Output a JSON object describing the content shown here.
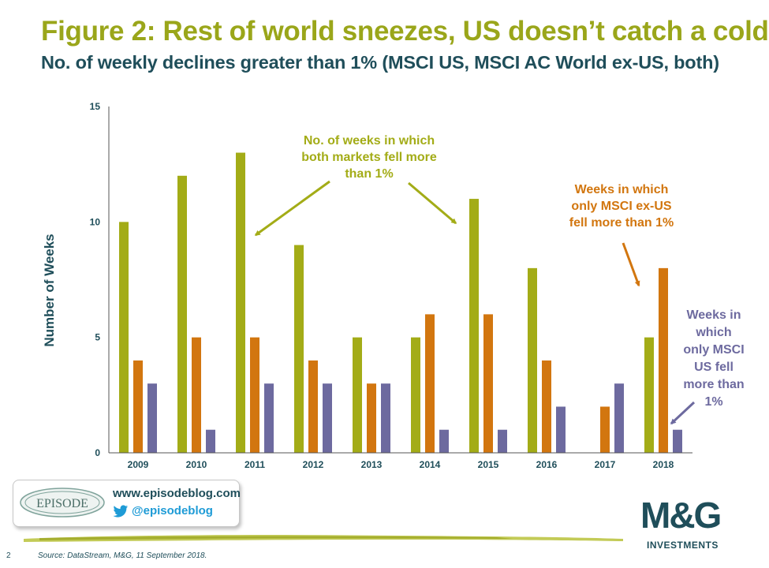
{
  "header": {
    "title": "Figure 2: Rest of world sneezes, US doesn’t catch a cold",
    "subtitle": "No. of weekly declines greater than 1% (MSCI US, MSCI AC World ex-US, both)"
  },
  "chart_data": {
    "type": "bar",
    "categories": [
      "2009",
      "2010",
      "2011",
      "2012",
      "2013",
      "2014",
      "2015",
      "2016",
      "2017",
      "2018"
    ],
    "series": [
      {
        "values": [
          10,
          12,
          13,
          9,
          5,
          5,
          11,
          8,
          0,
          5
        ],
        "color": "#a3ac17"
      },
      {
        "values": [
          4,
          5,
          5,
          4,
          3,
          6,
          6,
          4,
          2,
          8
        ],
        "color": "#d2760f"
      },
      {
        "values": [
          3,
          1,
          3,
          3,
          3,
          1,
          1,
          2,
          3,
          1
        ],
        "color": "#6d6a9f"
      }
    ],
    "ylabel": "Number of Weeks",
    "xlabel": "",
    "ylim": [
      0,
      15
    ],
    "yticks": [
      "0",
      "5",
      "10",
      "15"
    ],
    "grid": false,
    "annotations": [
      {
        "lines": [
          "No. of weeks in which",
          "both markets fell more",
          "than 1%"
        ],
        "color": "#a3ac17"
      },
      {
        "lines": [
          "Weeks in which",
          "only MSCI ex-US",
          "fell more than 1%"
        ],
        "color": "#d2760f"
      },
      {
        "lines": [
          "Weeks in",
          "which",
          "only MSCI",
          "US fell",
          "more than",
          "1%"
        ],
        "color": "#6d6a9f"
      }
    ]
  },
  "footer": {
    "logo_text": "EPISODE",
    "website": "www.episodeblog.com",
    "twitter": "@episodeblog",
    "mg_brand": "M&G",
    "mg_sub": "INVESTMENTS",
    "page_number": "2",
    "source": "Source: DataStream, M&G, 11 September 2018."
  }
}
